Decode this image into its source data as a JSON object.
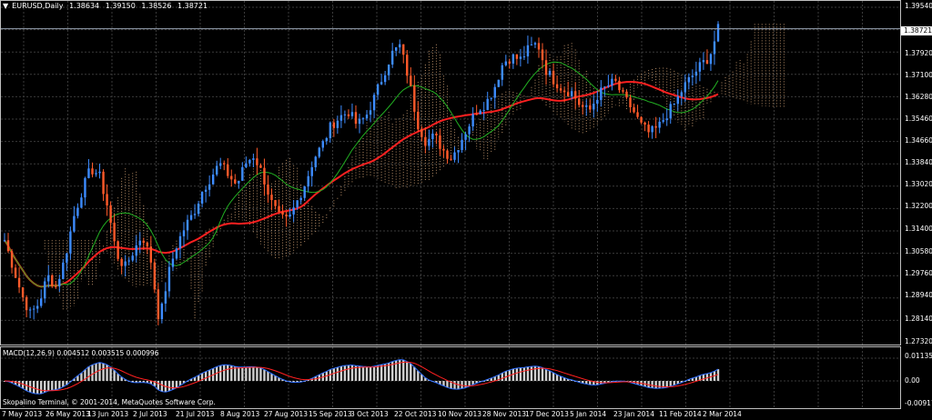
{
  "window": {
    "symbol_title": "EURUSD,Daily",
    "ohlc": [
      "1.38634",
      "1.39150",
      "1.38526",
      "1.38721"
    ],
    "current_price": "1.38721"
  },
  "price_scale": [
    "1.39540",
    "1.37920",
    "1.37100",
    "1.36280",
    "1.35460",
    "1.34660",
    "1.33840",
    "1.33020",
    "1.32200",
    "1.31400",
    "1.30580",
    "1.29760",
    "1.28940",
    "1.28140",
    "1.27320"
  ],
  "macd": {
    "label": "MACD(12,26,9) 0.004512 0.003515 0.000996",
    "scale": [
      "0.01135",
      "0.00",
      "-0.00917"
    ]
  },
  "time_axis": [
    "7 May 2013",
    "26 May 2013",
    "13 Jun 2013",
    "2 Jul 2013",
    "21 Jul 2013",
    "8 Aug 2013",
    "27 Aug 2013",
    "15 Sep 2013",
    "3 Oct 2013",
    "22 Oct 2013",
    "10 Nov 2013",
    "28 Nov 2013",
    "17 Dec 2013",
    "5 Jan 2014",
    "23 Jan 2014",
    "11 Feb 2014",
    "2 Mar 2014"
  ],
  "copyright": "Skopalino Terminal, © 2001-2014, MetaQuotes Software Corp.",
  "colors": {
    "background": "#000000",
    "grid": "#3a3a3a",
    "bull_candle": "#3d8cff",
    "bear_candle": "#ff5a2a",
    "ma_fast": "#22b022",
    "ma_slow": "#ff2020",
    "cloud": "#d9a87a",
    "macd_hist": "#d0d0d0",
    "macd_line": "#2f6fff",
    "signal_line": "#ff2020"
  },
  "chart_data": {
    "type": "candlestick",
    "ylim": [
      1.2732,
      1.3954
    ],
    "close_series": [
      1.31,
      1.3,
      1.29,
      1.283,
      1.287,
      1.297,
      1.293,
      1.303,
      1.318,
      1.328,
      1.336,
      1.334,
      1.322,
      1.305,
      1.3,
      1.306,
      1.312,
      1.303,
      1.28,
      1.297,
      1.308,
      1.315,
      1.32,
      1.328,
      1.333,
      1.338,
      1.334,
      1.33,
      1.338,
      1.341,
      1.334,
      1.324,
      1.318,
      1.317,
      1.324,
      1.331,
      1.34,
      1.345,
      1.352,
      1.355,
      1.357,
      1.352,
      1.355,
      1.362,
      1.37,
      1.378,
      1.381,
      1.369,
      1.353,
      1.346,
      1.348,
      1.343,
      1.34,
      1.346,
      1.352,
      1.358,
      1.36,
      1.366,
      1.375,
      1.377,
      1.376,
      1.38,
      1.382,
      1.372,
      1.368,
      1.365,
      1.364,
      1.359,
      1.357,
      1.363,
      1.366,
      1.368,
      1.362,
      1.358,
      1.352,
      1.349,
      1.351,
      1.356,
      1.36,
      1.366,
      1.37,
      1.374,
      1.377,
      1.387
    ]
  }
}
